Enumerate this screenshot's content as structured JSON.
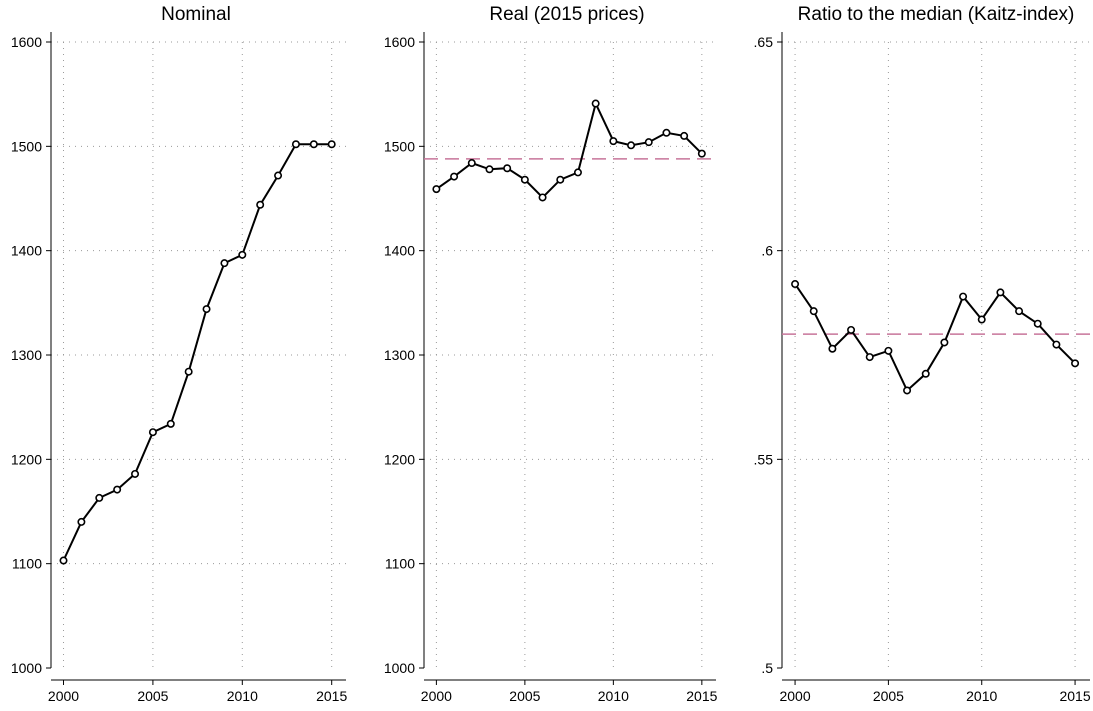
{
  "chart_data": [
    {
      "type": "line",
      "title": "Nominal",
      "xlabel": "",
      "ylabel": "",
      "x": [
        2000,
        2001,
        2002,
        2003,
        2004,
        2005,
        2006,
        2007,
        2008,
        2009,
        2010,
        2011,
        2012,
        2013,
        2014,
        2015
      ],
      "series": [
        {
          "values": [
            1103,
            1140,
            1163,
            1171,
            1186,
            1226,
            1234,
            1284,
            1344,
            1388,
            1396,
            1444,
            1472,
            1502,
            1502,
            1502
          ]
        }
      ],
      "reference_line": null,
      "xlim": [
        1999.3,
        2015.8
      ],
      "ylim": [
        1000,
        1600
      ],
      "xticks": [
        2000,
        2005,
        2010,
        2015
      ],
      "xtick_labels": [
        "2000",
        "2005",
        "2010",
        "2015"
      ],
      "yticks": [
        1000,
        1100,
        1200,
        1300,
        1400,
        1500,
        1600
      ],
      "ytick_labels": [
        "1000",
        "1100",
        "1200",
        "1300",
        "1400",
        "1500",
        "1600"
      ],
      "grid": true
    },
    {
      "type": "line",
      "title": "Real (2015 prices)",
      "xlabel": "",
      "ylabel": "",
      "x": [
        2000,
        2001,
        2002,
        2003,
        2004,
        2005,
        2006,
        2007,
        2008,
        2009,
        2010,
        2011,
        2012,
        2013,
        2014,
        2015
      ],
      "series": [
        {
          "values": [
            1459,
            1471,
            1484,
            1478,
            1479,
            1468,
            1451,
            1468,
            1475,
            1541,
            1505,
            1501,
            1504,
            1513,
            1510,
            1493
          ]
        }
      ],
      "reference_line": 1488,
      "xlim": [
        1999.3,
        2015.8
      ],
      "ylim": [
        1000,
        1600
      ],
      "xticks": [
        2000,
        2005,
        2010,
        2015
      ],
      "xtick_labels": [
        "2000",
        "2005",
        "2010",
        "2015"
      ],
      "yticks": [
        1000,
        1100,
        1200,
        1300,
        1400,
        1500,
        1600
      ],
      "ytick_labels": [
        "1000",
        "1100",
        "1200",
        "1300",
        "1400",
        "1500",
        "1600"
      ],
      "grid": true
    },
    {
      "type": "line",
      "title": "Ratio to the median (Kaitz-index)",
      "xlabel": "",
      "ylabel": "",
      "x": [
        2000,
        2001,
        2002,
        2003,
        2004,
        2005,
        2006,
        2007,
        2008,
        2009,
        2010,
        2011,
        2012,
        2013,
        2014,
        2015
      ],
      "series": [
        {
          "values": [
            0.592,
            0.5855,
            0.5765,
            0.581,
            0.5745,
            0.576,
            0.5665,
            0.5705,
            0.578,
            0.589,
            0.5835,
            0.59,
            0.5855,
            0.5825,
            0.5775,
            0.573
          ]
        }
      ],
      "reference_line": 0.58,
      "xlim": [
        1999.3,
        2015.8
      ],
      "ylim": [
        0.5,
        0.65
      ],
      "xticks": [
        2000,
        2005,
        2010,
        2015
      ],
      "xtick_labels": [
        "2000",
        "2005",
        "2010",
        "2015"
      ],
      "yticks": [
        0.5,
        0.55,
        0.6,
        0.65
      ],
      "ytick_labels": [
        ".5",
        ".55",
        ".6",
        ".65"
      ],
      "grid": true
    }
  ]
}
